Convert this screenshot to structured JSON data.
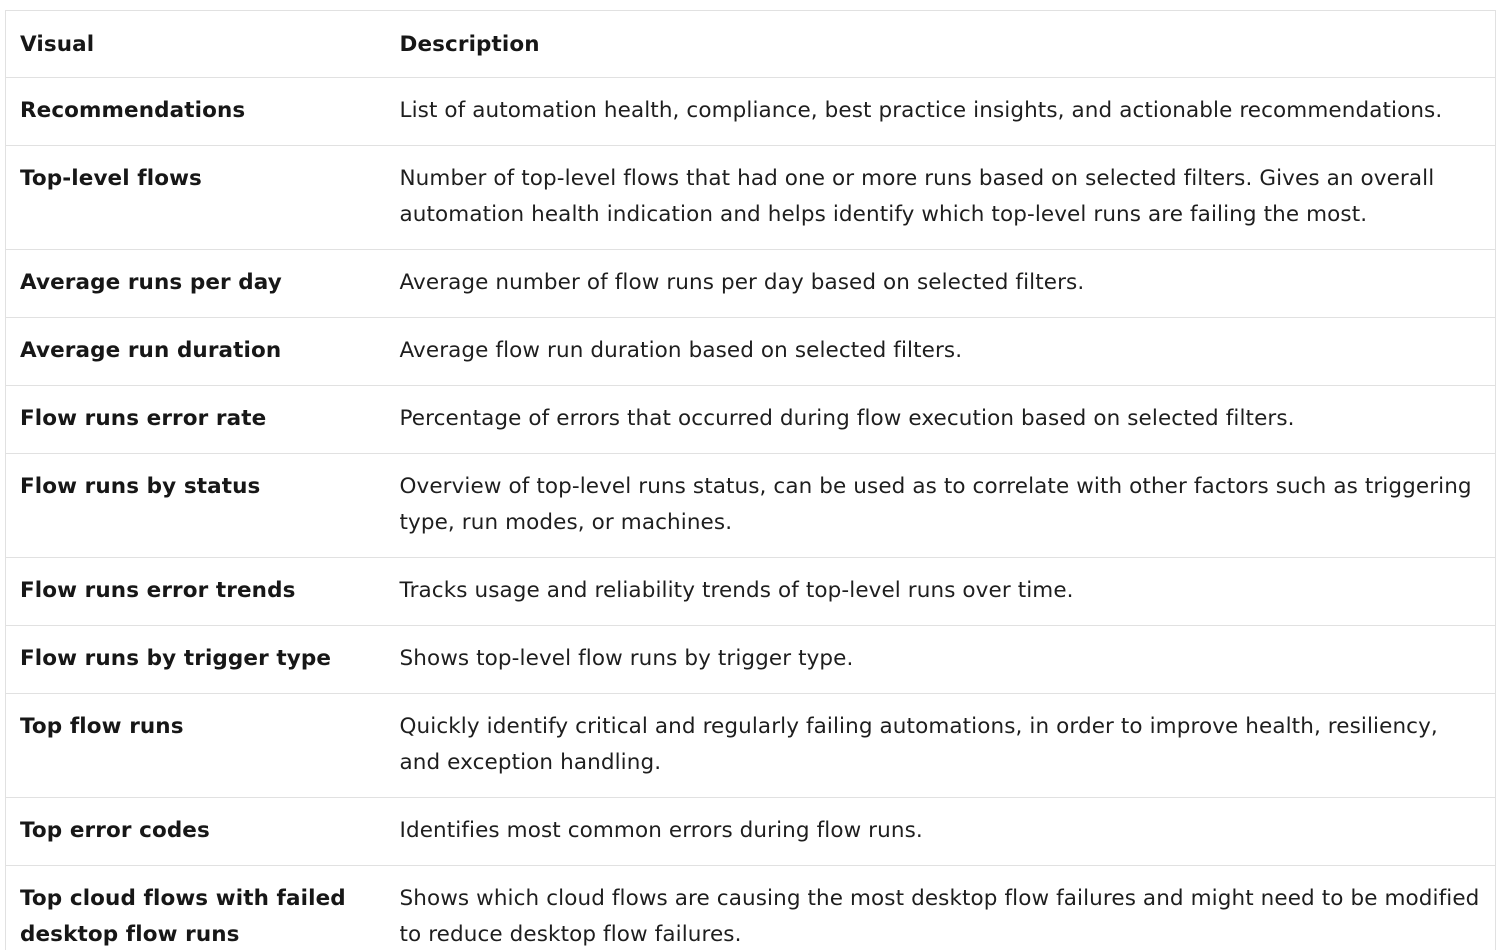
{
  "table": {
    "headers": [
      "Visual",
      "Description"
    ],
    "rows": [
      {
        "visual": "Recommendations",
        "description": "List of automation health, compliance, best practice insights, and actionable recommendations."
      },
      {
        "visual": "Top-level flows",
        "description": "Number of top-level flows that had one or more runs based on selected filters. Gives an overall automation health indication and helps identify which top-level runs are failing the most."
      },
      {
        "visual": "Average runs per day",
        "description": "Average number of flow runs per day based on selected filters."
      },
      {
        "visual": "Average run duration",
        "description": "Average flow run duration based on selected filters."
      },
      {
        "visual": "Flow runs error rate",
        "description": "Percentage of errors that occurred during flow execution based on selected filters."
      },
      {
        "visual": "Flow runs by status",
        "description": "Overview of top-level runs status, can be used as to correlate with other factors such as triggering type, run modes, or machines."
      },
      {
        "visual": "Flow runs error trends",
        "description": "Tracks usage and reliability trends of top-level runs over time."
      },
      {
        "visual": "Flow runs by trigger type",
        "description": "Shows top-level flow runs by trigger type."
      },
      {
        "visual": "Top flow runs",
        "description": "Quickly identify critical and regularly failing automations, in order to improve health, resiliency, and exception handling."
      },
      {
        "visual": "Top error codes",
        "description": "Identifies most common errors during flow runs."
      },
      {
        "visual": "Top cloud flows with failed desktop flow runs",
        "description": "Shows which cloud flows are causing the most desktop flow failures and might need to be modified to reduce desktop flow failures."
      }
    ]
  }
}
